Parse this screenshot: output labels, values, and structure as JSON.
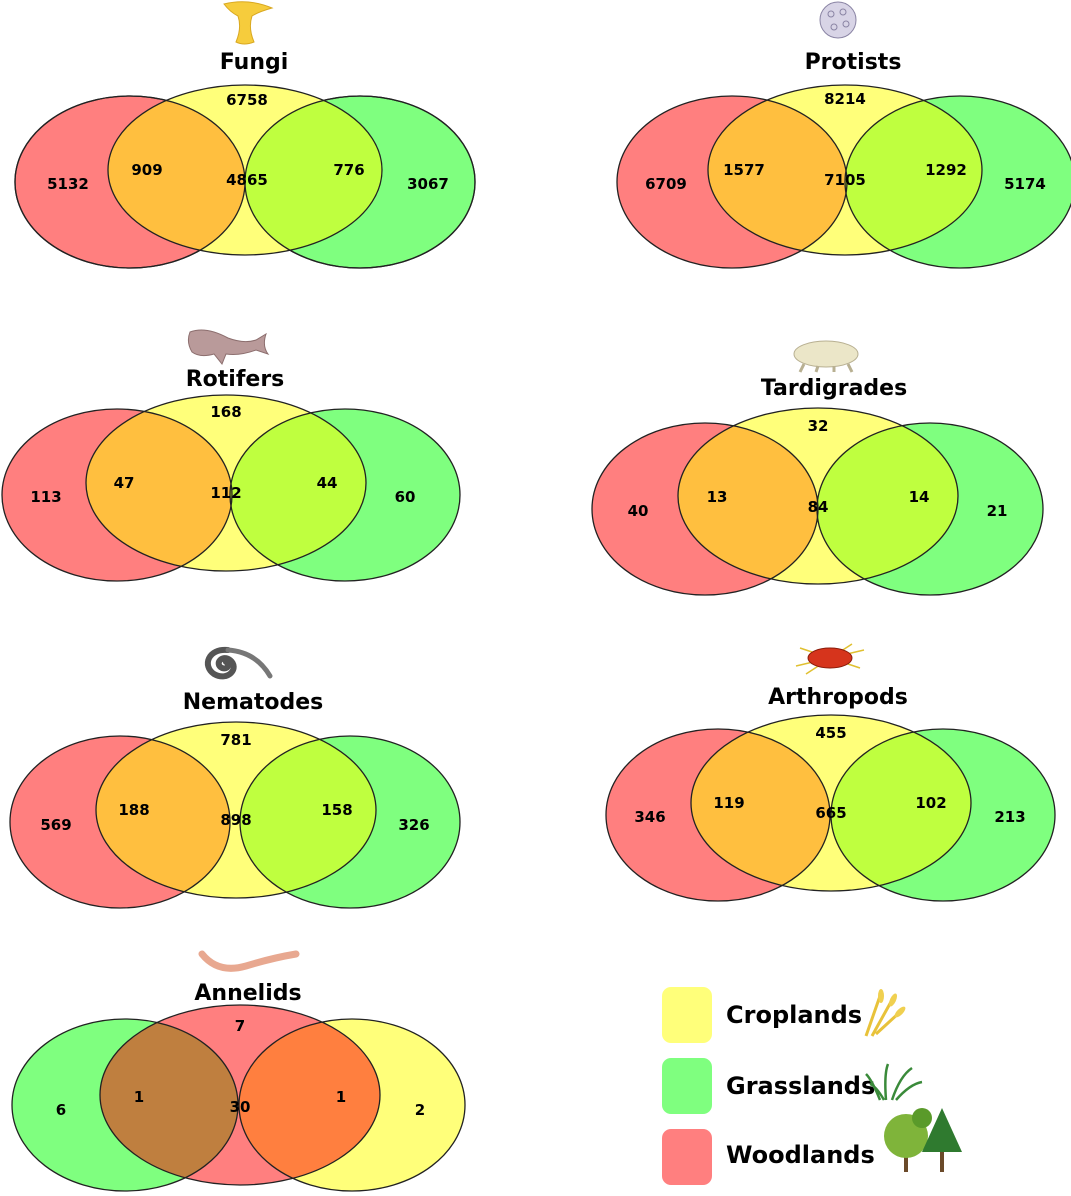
{
  "colors": {
    "croplands": "#ffff7a",
    "grasslands": "#7fff7f",
    "woodlands": "#ff7f7f",
    "wood_crop": "#ffbf3f",
    "crop_grass": "#bfff3f",
    "all_three": "#bfdf1f",
    "annelid_wood_grass": "#bf7f3f",
    "annelid_wood_crop": "#ff7f3f",
    "annelid_all_three": "#df7f1f"
  },
  "panels": [
    {
      "id": "fungi",
      "title": "Fungi",
      "icon": "mushroom-icon",
      "counts": {
        "top": "6758",
        "left_only": "5132",
        "left_mid": "909",
        "center": "4865",
        "right_mid": "776",
        "right_only": "3067"
      }
    },
    {
      "id": "protists",
      "title": "Protists",
      "icon": "protist-icon",
      "counts": {
        "top": "8214",
        "left_only": "6709",
        "left_mid": "1577",
        "center": "7105",
        "right_mid": "1292",
        "right_only": "5174"
      }
    },
    {
      "id": "rotifers",
      "title": "Rotifers",
      "icon": "rotifer-icon",
      "counts": {
        "top": "168",
        "left_only": "113",
        "left_mid": "47",
        "center": "112",
        "right_mid": "44",
        "right_only": "60"
      }
    },
    {
      "id": "tardigrades",
      "title": "Tardigrades",
      "icon": "tardigrade-icon",
      "counts": {
        "top": "32",
        "left_only": "40",
        "left_mid": "13",
        "center": "84",
        "right_mid": "14",
        "right_only": "21"
      }
    },
    {
      "id": "nematodes",
      "title": "Nematodes",
      "icon": "nematode-icon",
      "counts": {
        "top": "781",
        "left_only": "569",
        "left_mid": "188",
        "center": "898",
        "right_mid": "158",
        "right_only": "326"
      }
    },
    {
      "id": "arthropods",
      "title": "Arthropods",
      "icon": "mite-icon",
      "counts": {
        "top": "455",
        "left_only": "346",
        "left_mid": "119",
        "center": "665",
        "right_mid": "102",
        "right_only": "213"
      }
    },
    {
      "id": "annelids",
      "title": "Annelids",
      "icon": "earthworm-icon",
      "counts": {
        "top": "7",
        "left_only": "6",
        "left_mid": "1",
        "center": "30",
        "right_mid": "1",
        "right_only": "2"
      }
    }
  ],
  "legend": [
    {
      "label": "Croplands",
      "color": "#ffff7a",
      "icon": "wheat-icon"
    },
    {
      "label": "Grasslands",
      "color": "#7fff7f",
      "icon": "grass-icon"
    },
    {
      "label": "Woodlands",
      "color": "#ff7f7f",
      "icon": "trees-icon"
    }
  ]
}
